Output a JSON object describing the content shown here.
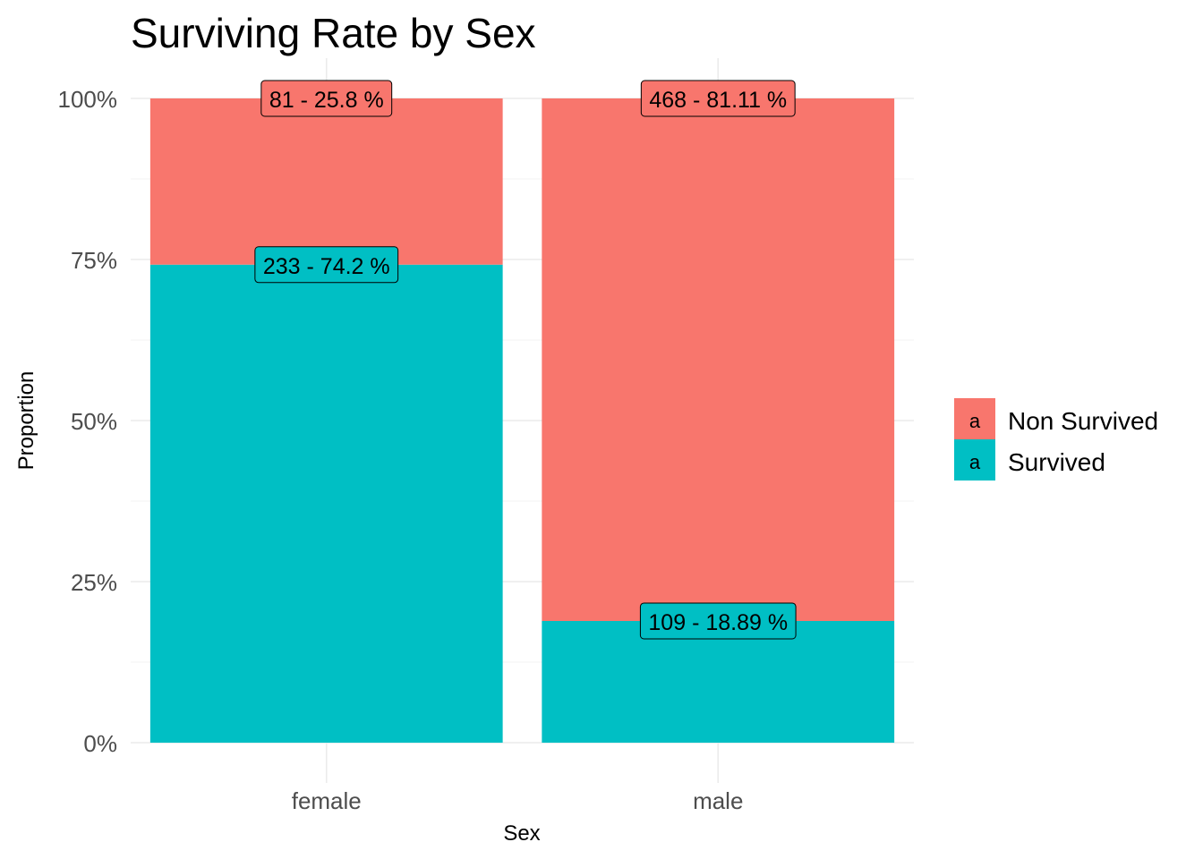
{
  "chart_data": {
    "type": "bar",
    "stacked": true,
    "normalized": true,
    "title": "Surviving Rate by Sex",
    "xlabel": "Sex",
    "ylabel": "Proportion",
    "categories": [
      "female",
      "male"
    ],
    "ylim": [
      0,
      1
    ],
    "yticks": [
      0,
      0.25,
      0.5,
      0.75,
      1
    ],
    "ytick_labels": [
      "0%",
      "25%",
      "50%",
      "75%",
      "100%"
    ],
    "grid": true,
    "legend_position": "right",
    "legend_key_glyph": "a",
    "series": [
      {
        "name": "Non Survived",
        "color": "#f8766d",
        "counts": [
          81,
          468
        ],
        "values": [
          0.258,
          0.8111
        ],
        "labels": [
          "81 - 25.8 %",
          "468 - 81.11 %"
        ]
      },
      {
        "name": "Survived",
        "color": "#00bfc4",
        "counts": [
          233,
          109
        ],
        "values": [
          0.742,
          0.1889
        ],
        "labels": [
          "233 - 74.2 %",
          "109 - 18.89 %"
        ]
      }
    ]
  }
}
